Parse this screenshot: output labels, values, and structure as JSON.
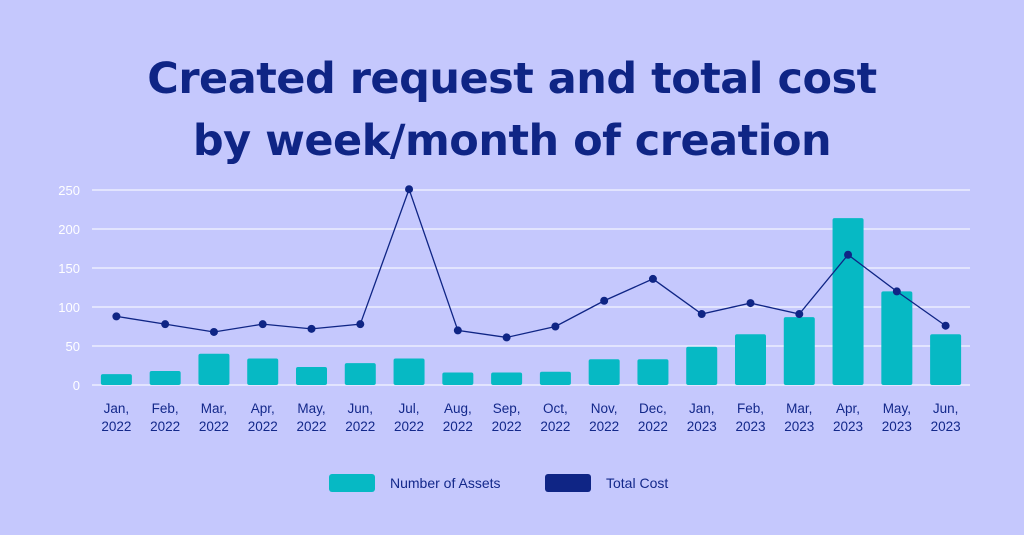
{
  "title_lines": [
    "Created request and total cost",
    "by week/month of creation"
  ],
  "colors": {
    "background": "#c5c8fd",
    "bars": "#06b9c4",
    "line": "#0f2585",
    "gridlines": "#ffffff",
    "title": "#0f2585"
  },
  "chart_data": {
    "type": "bar",
    "title": "Created request and total cost by week/month of creation",
    "categories": [
      [
        "Jan,",
        "2022"
      ],
      [
        "Feb,",
        "2022"
      ],
      [
        "Mar,",
        "2022"
      ],
      [
        "Apr,",
        "2022"
      ],
      [
        "May,",
        "2022"
      ],
      [
        "Jun,",
        "2022"
      ],
      [
        "Jul,",
        "2022"
      ],
      [
        "Aug,",
        "2022"
      ],
      [
        "Sep,",
        "2022"
      ],
      [
        "Oct,",
        "2022"
      ],
      [
        "Nov,",
        "2022"
      ],
      [
        "Dec,",
        "2022"
      ],
      [
        "Jan,",
        "2023"
      ],
      [
        "Feb,",
        "2023"
      ],
      [
        "Mar,",
        "2023"
      ],
      [
        "Apr,",
        "2023"
      ],
      [
        "May,",
        "2023"
      ],
      [
        "Jun,",
        "2023"
      ]
    ],
    "series": [
      {
        "name": "Number of Assets",
        "type": "bar",
        "values": [
          14,
          18,
          40,
          34,
          23,
          28,
          34,
          16,
          16,
          17,
          33,
          33,
          49,
          65,
          87,
          214,
          120,
          65
        ]
      },
      {
        "name": "Total Cost",
        "type": "line",
        "values": [
          88,
          78,
          68,
          78,
          72,
          78,
          251,
          70,
          61,
          75,
          108,
          136,
          91,
          105,
          91,
          167,
          120,
          76
        ]
      }
    ],
    "yticks": [
      "0",
      "50",
      "100",
      "150",
      "200",
      "250"
    ],
    "ylim": [
      0,
      250
    ],
    "grid": true,
    "legend_position": "bottom-center"
  }
}
